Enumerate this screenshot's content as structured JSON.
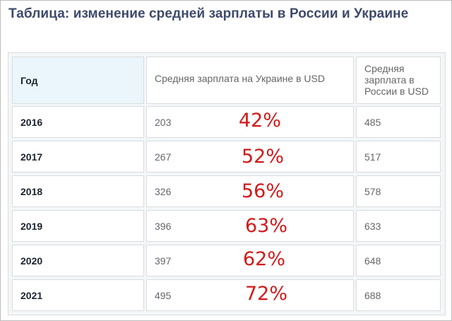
{
  "title": "Таблица: изменение средней зарплаты в России и Украине",
  "table": {
    "headers": {
      "year": "Год",
      "ukraine": "Средняя зарплата на Украине в USD",
      "russia": "Средняя зарплата в России в USD"
    },
    "rows": [
      {
        "year": "2016",
        "ukraine": "203",
        "percent": "42%",
        "russia": "485"
      },
      {
        "year": "2017",
        "ukraine": "267",
        "percent": "52%",
        "russia": "517"
      },
      {
        "year": "2018",
        "ukraine": "326",
        "percent": "56%",
        "russia": "578"
      },
      {
        "year": "2019",
        "ukraine": "396",
        "percent": "63%",
        "russia": "633"
      },
      {
        "year": "2020",
        "ukraine": "397",
        "percent": "62%",
        "russia": "648"
      },
      {
        "year": "2021",
        "ukraine": "495",
        "percent": "72%",
        "russia": "688"
      }
    ],
    "colors": {
      "percent": "#d11a1a",
      "header_year_bg": "#eaf6fc",
      "title": "#3d4a6b"
    }
  }
}
